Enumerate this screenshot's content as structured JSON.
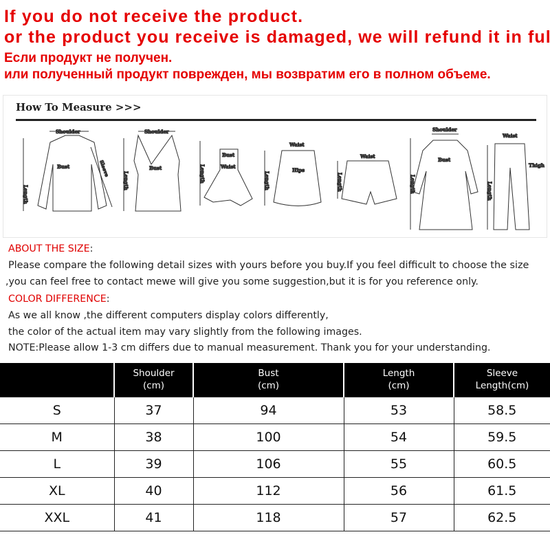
{
  "notice": {
    "line1": "If you do not receive the product.",
    "line2": "or the product you receive is damaged, we will refund it in full.",
    "line3": "Если продукт не получен.",
    "line4": "или полученный продукт поврежден, мы возвратим его в полном объеме."
  },
  "measure": {
    "title": "How To Measure >>>",
    "labels": {
      "shoulder": "Shoulder",
      "bust": "Bust",
      "sleeve": "Sleeve",
      "length": "Length",
      "waist": "Waist",
      "hips": "Hips",
      "thigh": "Thigh"
    }
  },
  "info": {
    "about_heading": "ABOUT THE SIZE",
    "about_colon": ":",
    "about_line1": "Please compare the following detail sizes with yours before you buy.If you feel difficult to choose the size",
    "about_line2": ",you can feel free to contact mewe will give you some suggestion,but it is for you reference only.",
    "color_heading": "COLOR DIFFERENCE",
    "color_colon": ":",
    "color_line1": "As we all know ,the different computers display colors differently,",
    "color_line2": "the color of the actual item may vary slightly from the following images.",
    "note": "NOTE:Please allow 1-3 cm differs due to manual measurement. Thank you for your understanding."
  },
  "accent_color": "#e00000",
  "table": {
    "headers": [
      [
        "",
        ""
      ],
      [
        "Shoulder",
        "(cm)"
      ],
      [
        "Bust",
        "(cm)"
      ],
      [
        "Length",
        "(cm)"
      ],
      [
        "Sleeve",
        "Length(cm)"
      ]
    ],
    "rows": [
      [
        "S",
        "37",
        "94",
        "53",
        "58.5"
      ],
      [
        "M",
        "38",
        "100",
        "54",
        "59.5"
      ],
      [
        "L",
        "39",
        "106",
        "55",
        "60.5"
      ],
      [
        "XL",
        "40",
        "112",
        "56",
        "61.5"
      ],
      [
        "XXL",
        "41",
        "118",
        "57",
        "62.5"
      ]
    ]
  }
}
